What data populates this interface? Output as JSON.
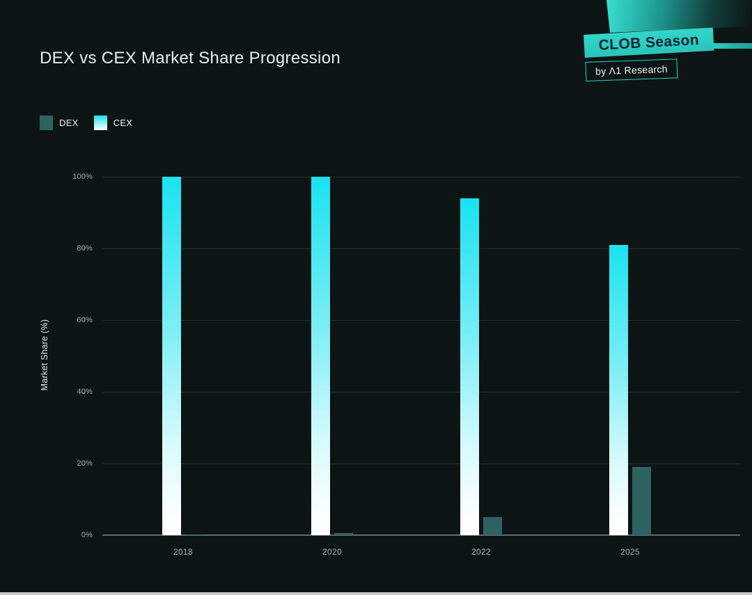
{
  "title": "DEX vs CEX Market Share Progression",
  "badge": {
    "label": "CLOB Season",
    "byline": "by Λ1 Research",
    "accent_color": "#2fd0c5",
    "badge_text_color": "#0a2330"
  },
  "legend": [
    {
      "label": "DEX",
      "color": "#2e6260"
    },
    {
      "label": "CEX",
      "gradient": [
        "#19e2f1",
        "#ffffff"
      ]
    }
  ],
  "chart_data": {
    "type": "bar",
    "categories": [
      "2018",
      "2020",
      "2022",
      "2025"
    ],
    "series": [
      {
        "name": "DEX",
        "values": [
          0.2,
          0.5,
          5,
          19
        ],
        "color": "#2e6260"
      },
      {
        "name": "CEX",
        "values": [
          100,
          100,
          94,
          81
        ],
        "gradient": [
          "#19e2f1",
          "#ffffff"
        ]
      }
    ],
    "bar_order": [
      "CEX",
      "DEX"
    ],
    "title": "DEX vs CEX Market Share Progression",
    "xlabel": "",
    "ylabel": "Market Share (%)",
    "ylim": [
      0,
      100
    ],
    "ytick_values": [
      0,
      20,
      40,
      60,
      80,
      100
    ],
    "yticks": [
      "0%",
      "20%",
      "40%",
      "60%",
      "80%",
      "100%"
    ],
    "grid": true,
    "legend_position": "top-left"
  },
  "colors": {
    "background": "#0c1514",
    "gridline": "#243230",
    "axis_line": "#5f6a68",
    "tick_text": "#a7b1af",
    "title_text": "#e9eeed",
    "bottom_strip": "#c7cbca"
  }
}
